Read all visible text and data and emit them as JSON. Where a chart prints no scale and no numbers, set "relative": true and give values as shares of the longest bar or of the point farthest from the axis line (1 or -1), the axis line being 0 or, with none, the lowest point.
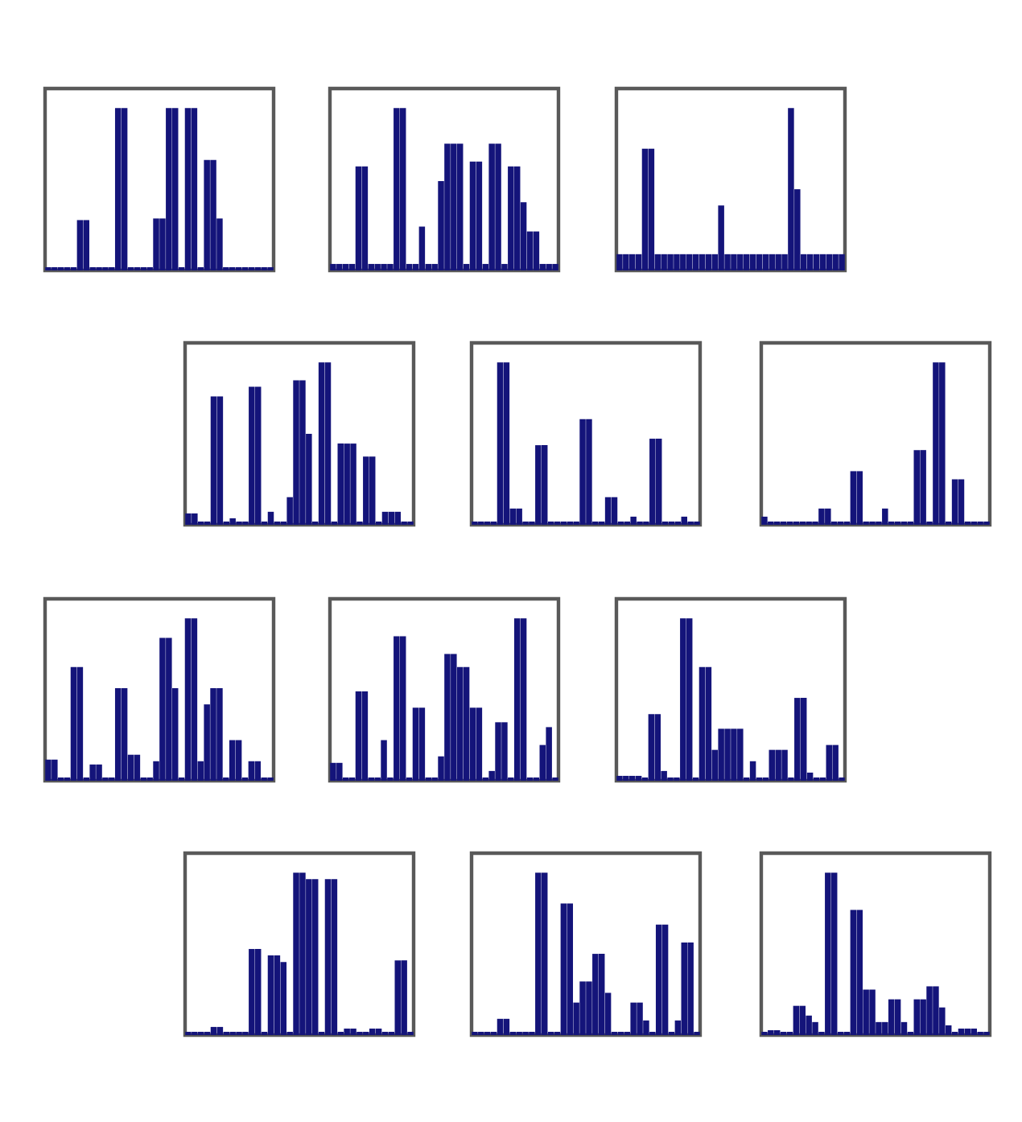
{
  "chart_data": [
    {
      "type": "bar",
      "relative": true,
      "color": "#14147a",
      "categories": [
        null,
        null,
        null,
        null,
        null,
        null,
        null,
        null,
        null,
        null,
        null,
        null,
        null,
        null,
        null,
        null,
        null,
        null,
        null,
        null,
        null,
        null,
        null,
        null,
        null,
        null,
        null,
        null,
        null,
        null,
        null,
        null,
        null,
        null,
        null,
        null
      ],
      "values": [
        0.02,
        0.02,
        0.02,
        0.02,
        0.02,
        0.31,
        0.31,
        0.02,
        0.02,
        0.02,
        0.02,
        1,
        1,
        0.02,
        0.02,
        0.02,
        0.02,
        0.32,
        0.32,
        1,
        1,
        0.02,
        1,
        1,
        0.02,
        0.68,
        0.68,
        0.32,
        0.02,
        0.02,
        0.02,
        0.02,
        0.02,
        0.02,
        0.02,
        0.02
      ]
    },
    {
      "type": "bar",
      "relative": true,
      "color": "#14147a",
      "categories": [
        null,
        null,
        null,
        null,
        null,
        null,
        null,
        null,
        null,
        null,
        null,
        null,
        null,
        null,
        null,
        null,
        null,
        null,
        null,
        null,
        null,
        null,
        null,
        null,
        null,
        null,
        null,
        null,
        null,
        null,
        null,
        null,
        null,
        null,
        null,
        null
      ],
      "values": [
        0.04,
        0.04,
        0.04,
        0.04,
        0.64,
        0.64,
        0.04,
        0.04,
        0.04,
        0.04,
        1,
        1,
        0.04,
        0.04,
        0.27,
        0.04,
        0.04,
        0.55,
        0.78,
        0.78,
        0.78,
        0.04,
        0.67,
        0.67,
        0.04,
        0.78,
        0.78,
        0.04,
        0.64,
        0.64,
        0.42,
        0.24,
        0.24,
        0.04,
        0.04,
        0.04
      ]
    },
    {
      "type": "bar",
      "relative": true,
      "color": "#14147a",
      "categories": [
        null,
        null,
        null,
        null,
        null,
        null,
        null,
        null,
        null,
        null,
        null,
        null,
        null,
        null,
        null,
        null,
        null,
        null,
        null,
        null,
        null,
        null,
        null,
        null,
        null,
        null,
        null,
        null,
        null,
        null,
        null,
        null,
        null,
        null,
        null,
        null
      ],
      "values": [
        0.1,
        0.1,
        0.1,
        0.1,
        0.75,
        0.75,
        0.1,
        0.1,
        0.1,
        0.1,
        0.1,
        0.1,
        0.1,
        0.1,
        0.1,
        0.1,
        0.4,
        0.1,
        0.1,
        0.1,
        0.1,
        0.1,
        0.1,
        0.1,
        0.1,
        0.1,
        0.1,
        1,
        0.5,
        0.1,
        0.1,
        0.1,
        0.1,
        0.1,
        0.1,
        0.1
      ]
    },
    {
      "type": "bar",
      "relative": true,
      "color": "#14147a",
      "categories": [
        null,
        null,
        null,
        null,
        null,
        null,
        null,
        null,
        null,
        null,
        null,
        null,
        null,
        null,
        null,
        null,
        null,
        null,
        null,
        null,
        null,
        null,
        null,
        null,
        null,
        null,
        null,
        null,
        null,
        null,
        null,
        null,
        null,
        null,
        null,
        null
      ],
      "values": [
        0.07,
        0.07,
        0.02,
        0.02,
        0.79,
        0.79,
        0.02,
        0.04,
        0.02,
        0.02,
        0.85,
        0.85,
        0.02,
        0.08,
        0.02,
        0.02,
        0.17,
        0.89,
        0.89,
        0.56,
        0.02,
        1,
        1,
        0.02,
        0.5,
        0.5,
        0.5,
        0.02,
        0.42,
        0.42,
        0.02,
        0.08,
        0.08,
        0.08,
        0.02,
        0.02
      ]
    },
    {
      "type": "bar",
      "relative": true,
      "color": "#14147a",
      "categories": [
        null,
        null,
        null,
        null,
        null,
        null,
        null,
        null,
        null,
        null,
        null,
        null,
        null,
        null,
        null,
        null,
        null,
        null,
        null,
        null,
        null,
        null,
        null,
        null,
        null,
        null,
        null,
        null,
        null,
        null,
        null,
        null,
        null,
        null,
        null,
        null
      ],
      "values": [
        0.02,
        0.02,
        0.02,
        0.02,
        1,
        1,
        0.1,
        0.1,
        0.02,
        0.02,
        0.49,
        0.49,
        0.02,
        0.02,
        0.02,
        0.02,
        0.02,
        0.65,
        0.65,
        0.02,
        0.02,
        0.17,
        0.17,
        0.02,
        0.02,
        0.05,
        0.02,
        0.02,
        0.53,
        0.53,
        0.02,
        0.02,
        0.02,
        0.05,
        0.02,
        0.02
      ]
    },
    {
      "type": "bar",
      "relative": true,
      "color": "#14147a",
      "categories": [
        null,
        null,
        null,
        null,
        null,
        null,
        null,
        null,
        null,
        null,
        null,
        null,
        null,
        null,
        null,
        null,
        null,
        null,
        null,
        null,
        null,
        null,
        null,
        null,
        null,
        null,
        null,
        null,
        null,
        null,
        null,
        null,
        null,
        null,
        null,
        null
      ],
      "values": [
        0.05,
        0.02,
        0.02,
        0.02,
        0.02,
        0.02,
        0.02,
        0.02,
        0.02,
        0.1,
        0.1,
        0.02,
        0.02,
        0.02,
        0.33,
        0.33,
        0.02,
        0.02,
        0.02,
        0.1,
        0.02,
        0.02,
        0.02,
        0.02,
        0.46,
        0.46,
        0.02,
        1,
        1,
        0.02,
        0.28,
        0.28,
        0.02,
        0.02,
        0.02,
        0.02
      ]
    },
    {
      "type": "bar",
      "relative": true,
      "color": "#14147a",
      "categories": [
        null,
        null,
        null,
        null,
        null,
        null,
        null,
        null,
        null,
        null,
        null,
        null,
        null,
        null,
        null,
        null,
        null,
        null,
        null,
        null,
        null,
        null,
        null,
        null,
        null,
        null,
        null,
        null,
        null,
        null,
        null,
        null,
        null,
        null,
        null,
        null
      ],
      "values": [
        0.13,
        0.13,
        0.02,
        0.02,
        0.7,
        0.7,
        0.02,
        0.1,
        0.1,
        0.02,
        0.02,
        0.57,
        0.57,
        0.16,
        0.16,
        0.02,
        0.02,
        0.12,
        0.88,
        0.88,
        0.57,
        0.02,
        1,
        1,
        0.12,
        0.47,
        0.57,
        0.57,
        0.02,
        0.25,
        0.25,
        0.02,
        0.12,
        0.12,
        0.02,
        0.02
      ]
    },
    {
      "type": "bar",
      "relative": true,
      "color": "#14147a",
      "categories": [
        null,
        null,
        null,
        null,
        null,
        null,
        null,
        null,
        null,
        null,
        null,
        null,
        null,
        null,
        null,
        null,
        null,
        null,
        null,
        null,
        null,
        null,
        null,
        null,
        null,
        null,
        null,
        null,
        null,
        null,
        null,
        null,
        null,
        null,
        null,
        null
      ],
      "values": [
        0.11,
        0.11,
        0.02,
        0.02,
        0.55,
        0.55,
        0.02,
        0.02,
        0.25,
        0.02,
        0.89,
        0.89,
        0.02,
        0.45,
        0.45,
        0.02,
        0.02,
        0.15,
        0.78,
        0.78,
        0.7,
        0.7,
        0.45,
        0.45,
        0.02,
        0.06,
        0.36,
        0.36,
        0.02,
        1,
        1,
        0.02,
        0.02,
        0.22,
        0.33,
        0.02
      ]
    },
    {
      "type": "bar",
      "relative": true,
      "color": "#14147a",
      "categories": [
        null,
        null,
        null,
        null,
        null,
        null,
        null,
        null,
        null,
        null,
        null,
        null,
        null,
        null,
        null,
        null,
        null,
        null,
        null,
        null,
        null,
        null,
        null,
        null,
        null,
        null,
        null,
        null,
        null,
        null,
        null,
        null,
        null,
        null,
        null,
        null
      ],
      "values": [
        0.03,
        0.03,
        0.03,
        0.03,
        0.02,
        0.41,
        0.41,
        0.06,
        0.02,
        0.02,
        1,
        1,
        0.02,
        0.7,
        0.7,
        0.19,
        0.32,
        0.32,
        0.32,
        0.32,
        0.02,
        0.12,
        0.02,
        0.02,
        0.19,
        0.19,
        0.19,
        0.02,
        0.51,
        0.51,
        0.05,
        0.02,
        0.02,
        0.22,
        0.22,
        0.02
      ]
    },
    {
      "type": "bar",
      "relative": true,
      "color": "#14147a",
      "categories": [
        null,
        null,
        null,
        null,
        null,
        null,
        null,
        null,
        null,
        null,
        null,
        null,
        null,
        null,
        null,
        null,
        null,
        null,
        null,
        null,
        null,
        null,
        null,
        null,
        null,
        null,
        null,
        null,
        null,
        null,
        null,
        null,
        null,
        null,
        null,
        null
      ],
      "values": [
        0.02,
        0.02,
        0.02,
        0.02,
        0.05,
        0.05,
        0.02,
        0.02,
        0.02,
        0.02,
        0.53,
        0.53,
        0.02,
        0.49,
        0.49,
        0.45,
        0.02,
        1,
        1,
        0.96,
        0.96,
        0.02,
        0.96,
        0.96,
        0.02,
        0.04,
        0.04,
        0.02,
        0.02,
        0.04,
        0.04,
        0.02,
        0.02,
        0.46,
        0.46,
        0.02
      ]
    },
    {
      "type": "bar",
      "relative": true,
      "color": "#14147a",
      "categories": [
        null,
        null,
        null,
        null,
        null,
        null,
        null,
        null,
        null,
        null,
        null,
        null,
        null,
        null,
        null,
        null,
        null,
        null,
        null,
        null,
        null,
        null,
        null,
        null,
        null,
        null,
        null,
        null,
        null,
        null,
        null,
        null,
        null,
        null,
        null,
        null
      ],
      "values": [
        0.02,
        0.02,
        0.02,
        0.02,
        0.1,
        0.1,
        0.02,
        0.02,
        0.02,
        0.02,
        1,
        1,
        0.02,
        0.02,
        0.81,
        0.81,
        0.2,
        0.33,
        0.33,
        0.5,
        0.5,
        0.26,
        0.02,
        0.02,
        0.02,
        0.2,
        0.2,
        0.09,
        0.02,
        0.68,
        0.68,
        0.02,
        0.09,
        0.57,
        0.57,
        0.02
      ]
    },
    {
      "type": "bar",
      "relative": true,
      "color": "#14147a",
      "categories": [
        null,
        null,
        null,
        null,
        null,
        null,
        null,
        null,
        null,
        null,
        null,
        null,
        null,
        null,
        null,
        null,
        null,
        null,
        null,
        null,
        null,
        null,
        null,
        null,
        null,
        null,
        null,
        null,
        null,
        null,
        null,
        null,
        null,
        null,
        null,
        null
      ],
      "values": [
        0.02,
        0.03,
        0.03,
        0.02,
        0.02,
        0.18,
        0.18,
        0.12,
        0.08,
        0.02,
        1,
        1,
        0.02,
        0.02,
        0.77,
        0.77,
        0.28,
        0.28,
        0.08,
        0.08,
        0.22,
        0.22,
        0.08,
        0.02,
        0.22,
        0.22,
        0.3,
        0.3,
        0.17,
        0.06,
        0.02,
        0.04,
        0.04,
        0.04,
        0.02,
        0.02
      ]
    }
  ]
}
